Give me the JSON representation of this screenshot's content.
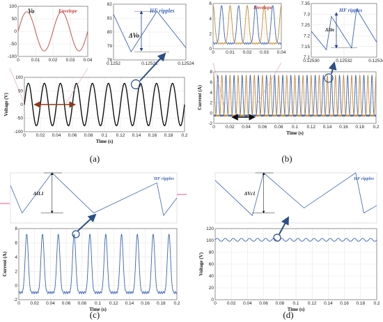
{
  "panel_labels": [
    "(a)",
    "(b)",
    "(c)",
    "(d)"
  ],
  "colors": {
    "blue": "#3a63b8",
    "red": "#c4413a",
    "orange": "#c88a2c",
    "black": "#111111",
    "brown": "#8b3a1a",
    "arrow": "#2b4f86",
    "navy": "#1f3f9a"
  },
  "chart_data": [
    {
      "id": "a-main",
      "type": "line",
      "title": "",
      "xlabel": "Time (s)",
      "ylabel": "Voltage (V)",
      "xlim": [
        0,
        0.2
      ],
      "ylim": [
        -100,
        100
      ],
      "xticks": [
        "0",
        "0.02",
        "0.04",
        "0.06",
        "0.08",
        "0.1",
        "0.12",
        "0.14",
        "0.16",
        "0.18",
        "0.2"
      ],
      "yticks": [
        "-100",
        "-50",
        "0",
        "50",
        "100"
      ],
      "grid": true,
      "series": [
        {
          "color": "black",
          "waveform": "sine",
          "amplitude": 78,
          "frequency_hz": 50
        }
      ],
      "annotation": {
        "type": "double-arrow",
        "from_x": 0.013,
        "to_x": 0.063,
        "y": 0
      }
    },
    {
      "id": "a-envelope",
      "type": "line",
      "legend": [
        "Vo",
        "Envelope"
      ],
      "xlim": [
        0,
        0.04
      ],
      "ylim": [
        -100,
        100
      ],
      "xticks": [
        "0",
        "0.01",
        "0.02",
        "0.03",
        "0.04"
      ],
      "yticks": [
        "-100",
        "-50",
        "0",
        "50",
        "100"
      ],
      "grid": true,
      "series": [
        {
          "color": "red",
          "waveform": "sine",
          "amplitude": 78,
          "frequency_hz": 50
        }
      ]
    },
    {
      "id": "a-ripple",
      "type": "line",
      "annotations": [
        "HF ripples",
        "ΔVo"
      ],
      "xlim": [
        0.12518,
        0.12525
      ],
      "ylim": [
        77,
        82.5
      ],
      "xticks": [
        "0.1252",
        "0.12522",
        "0.12524"
      ],
      "yticks": [
        "78",
        "79",
        "80",
        "81",
        "82"
      ],
      "grid": true,
      "series": [
        {
          "color": "blue",
          "x": [
            0.12518,
            0.125197,
            0.125222,
            0.12525
          ],
          "y": [
            81.5,
            77.8,
            81.8,
            78.2
          ]
        }
      ]
    },
    {
      "id": "b-main",
      "type": "line",
      "title": "",
      "xlabel": "Time (s)",
      "ylabel": "Current (A)",
      "xlim": [
        0,
        0.2
      ],
      "ylim": [
        -2,
        8
      ],
      "xticks": [
        "0",
        "0.02",
        "0.04",
        "0.06",
        "0.08",
        "0.1",
        "0.12",
        "0.14",
        "0.16",
        "0.18",
        "0.2"
      ],
      "yticks": [
        "-2",
        "0",
        "2",
        "4",
        "6",
        "8"
      ],
      "grid": true,
      "series": [
        {
          "color": "blue",
          "waveform": "pulse",
          "peak": 7.3,
          "base": -0.5,
          "frequency_hz": 100,
          "phase": 0
        },
        {
          "color": "orange",
          "waveform": "pulse",
          "peak": 7.3,
          "base": -0.5,
          "frequency_hz": 100,
          "phase": 0.5
        }
      ],
      "annotation": {
        "type": "double-arrow",
        "from_x": 0.023,
        "to_x": 0.05,
        "y": -0.8
      }
    },
    {
      "id": "b-envelope",
      "type": "line",
      "legend": [
        "Envelope"
      ],
      "xlim": [
        0,
        0.04
      ],
      "ylim": [
        -1,
        7.5
      ],
      "xticks": [
        "0",
        "0.01",
        "0.02",
        "0.03",
        "0.04"
      ],
      "yticks": [
        "0",
        "2",
        "4",
        "6"
      ],
      "grid": true,
      "series": [
        {
          "color": "blue",
          "waveform": "pulse",
          "peak": 7.1,
          "base": 0,
          "frequency_hz": 100,
          "phase": 0
        },
        {
          "color": "orange",
          "waveform": "pulse",
          "peak": 7.1,
          "base": 0,
          "frequency_hz": 100,
          "phase": 0.5
        }
      ]
    },
    {
      "id": "b-ripple",
      "type": "line",
      "annotations": [
        "HF ripples",
        "ΔIin"
      ],
      "xlim": [
        0.12529,
        0.125355
      ],
      "ylim": [
        7.08,
        7.37
      ],
      "xticks": [
        "0.12530",
        "0.12532",
        "0.12534"
      ],
      "yticks": [
        "7.1",
        "7.15",
        "7.2",
        "7.25",
        "7.3",
        "7.35"
      ],
      "grid": true,
      "series": [
        {
          "color": "blue",
          "x": [
            0.12529,
            0.125305,
            0.12531,
            0.12533,
            0.125335,
            0.125355
          ],
          "y": [
            7.22,
            7.12,
            7.3,
            7.13,
            7.34,
            7.16
          ]
        }
      ]
    },
    {
      "id": "c-main",
      "type": "line",
      "title": "",
      "xlabel": "Time (s)",
      "ylabel": "Current (A)",
      "xlim": [
        0,
        0.2
      ],
      "ylim": [
        -2,
        8
      ],
      "xticks": [
        "0",
        "0.02",
        "0.04",
        "0.06",
        "0.08",
        "0.1",
        "0.12",
        "0.14",
        "0.16",
        "0.18",
        "0.2"
      ],
      "yticks": [
        "-2",
        "0",
        "2",
        "4",
        "6",
        "8"
      ],
      "grid": true,
      "series": [
        {
          "color": "blue",
          "waveform": "pulse",
          "peak": 7.2,
          "base": -1,
          "frequency_hz": 50,
          "phase": 0
        }
      ]
    },
    {
      "id": "c-ripple",
      "type": "line",
      "annotations": [
        "HF ripples",
        "ΔIL1"
      ],
      "series": [
        {
          "color": "blue",
          "x": [
            0,
            0.07,
            0.25,
            0.5,
            0.88,
            0.92,
            1
          ],
          "y": [
            0.75,
            0.2,
            1.0,
            0.2,
            0.8,
            0.15,
            0.5
          ]
        }
      ]
    },
    {
      "id": "d-main",
      "type": "line",
      "title": "",
      "xlabel": "Time (s)",
      "ylabel": "Voltage (V)",
      "xlim": [
        0,
        0.2
      ],
      "ylim": [
        0,
        120
      ],
      "xticks": [
        "0",
        "0.02",
        "0.04",
        "0.06",
        "0.08",
        "0.1",
        "0.12",
        "0.14",
        "0.16",
        "0.18",
        "0.2"
      ],
      "yticks": [
        "0",
        "20",
        "40",
        "60",
        "80",
        "100",
        "120"
      ],
      "grid": true,
      "series": [
        {
          "color": "blue",
          "waveform": "sine-offset",
          "offset": 101,
          "amplitude": 2.5,
          "frequency_hz": 100
        }
      ]
    },
    {
      "id": "d-ripple",
      "type": "line",
      "annotations": [
        "HF ripples",
        "ΔVc1"
      ],
      "series": [
        {
          "color": "blue",
          "x": [
            0,
            0.23,
            0.3,
            0.55,
            0.87,
            0.92,
            1
          ],
          "y": [
            0.85,
            0.15,
            1.0,
            0.3,
            1.0,
            0.2,
            0.35
          ]
        }
      ]
    }
  ]
}
